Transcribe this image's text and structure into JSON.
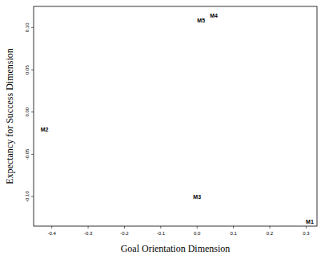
{
  "chart_data": {
    "type": "scatter",
    "x_label": "Goal Orientation Dimension",
    "y_label": "Expectancy for Success Dimension",
    "labels": [
      "M1",
      "M2",
      "M3",
      "M4",
      "M5"
    ],
    "x": [
      0.31,
      -0.42,
      0.0,
      0.046,
      0.011
    ],
    "values": [
      -0.13,
      -0.021,
      -0.1,
      0.114,
      0.108
    ],
    "color": "#000000",
    "marker": "none",
    "xlim": [
      -0.45,
      0.33
    ],
    "ylim": [
      -0.135,
      0.125
    ],
    "xticks": [
      -0.4,
      -0.3,
      -0.2,
      -0.1,
      {
        "value": 0,
        "label": "0.0"
      },
      0.1,
      0.2,
      0.3
    ],
    "yticks": [
      {
        "value": -0.1,
        "label": "-0.10"
      },
      {
        "value": -0.05,
        "label": "-0.05"
      },
      {
        "value": 0,
        "label": "0.00"
      },
      {
        "value": 0.05,
        "label": "0.05"
      },
      {
        "value": 0.1,
        "label": "0.10"
      }
    ],
    "grid": false
  }
}
